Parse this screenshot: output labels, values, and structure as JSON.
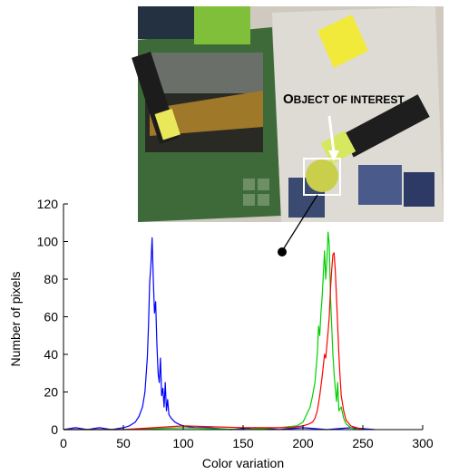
{
  "photo": {
    "caption_initial": "O",
    "caption_rest": "BJECT OF INTEREST"
  },
  "chart_data": {
    "type": "line",
    "xlabel": "Color variation",
    "ylabel": "Number of pixels",
    "xlim": [
      0,
      300
    ],
    "ylim": [
      0,
      120
    ],
    "xticks": [
      0,
      50,
      100,
      150,
      200,
      250,
      300
    ],
    "yticks": [
      0,
      20,
      40,
      60,
      80,
      100,
      120
    ],
    "grid": false,
    "legend": "none",
    "series": [
      {
        "color": "#0000ff",
        "x": [
          0,
          10,
          20,
          30,
          40,
          50,
          55,
          60,
          63,
          66,
          68,
          70,
          71,
          72,
          73,
          74,
          75,
          76,
          77,
          78,
          79,
          80,
          81,
          82,
          83,
          84,
          85,
          86,
          87,
          88,
          90,
          93,
          96,
          100,
          110,
          120,
          140,
          160,
          180,
          200,
          220,
          240,
          260
        ],
        "y": [
          0,
          1,
          0,
          1,
          0,
          1,
          2,
          4,
          7,
          12,
          20,
          38,
          55,
          78,
          88,
          102,
          80,
          62,
          68,
          45,
          30,
          25,
          38,
          18,
          22,
          12,
          25,
          10,
          16,
          8,
          6,
          4,
          3,
          2,
          1,
          1,
          0,
          1,
          0,
          1,
          0,
          1,
          0
        ]
      },
      {
        "color": "#00d000",
        "x": [
          0,
          50,
          100,
          150,
          180,
          195,
          200,
          203,
          206,
          208,
          210,
          212,
          213,
          214,
          215,
          216,
          217,
          218,
          219,
          220,
          221,
          222,
          223,
          224,
          225,
          226,
          227,
          228,
          229,
          230,
          232,
          234,
          236,
          240,
          245,
          250
        ],
        "y": [
          0,
          0,
          1,
          0,
          1,
          2,
          4,
          8,
          12,
          18,
          25,
          40,
          55,
          50,
          62,
          70,
          82,
          95,
          80,
          90,
          105,
          98,
          70,
          55,
          40,
          30,
          22,
          15,
          25,
          10,
          12,
          6,
          3,
          1,
          0,
          0
        ]
      },
      {
        "color": "#ff0000",
        "x": [
          0,
          50,
          100,
          150,
          190,
          200,
          205,
          208,
          210,
          212,
          214,
          216,
          218,
          219,
          220,
          221,
          222,
          223,
          224,
          225,
          226,
          227,
          228,
          229,
          230,
          231,
          232,
          234,
          236,
          240,
          250
        ],
        "y": [
          0,
          0,
          2,
          1,
          1,
          2,
          3,
          4,
          6,
          10,
          18,
          28,
          40,
          38,
          45,
          52,
          60,
          75,
          85,
          93,
          94,
          85,
          70,
          55,
          40,
          28,
          18,
          10,
          5,
          2,
          0
        ]
      }
    ]
  }
}
